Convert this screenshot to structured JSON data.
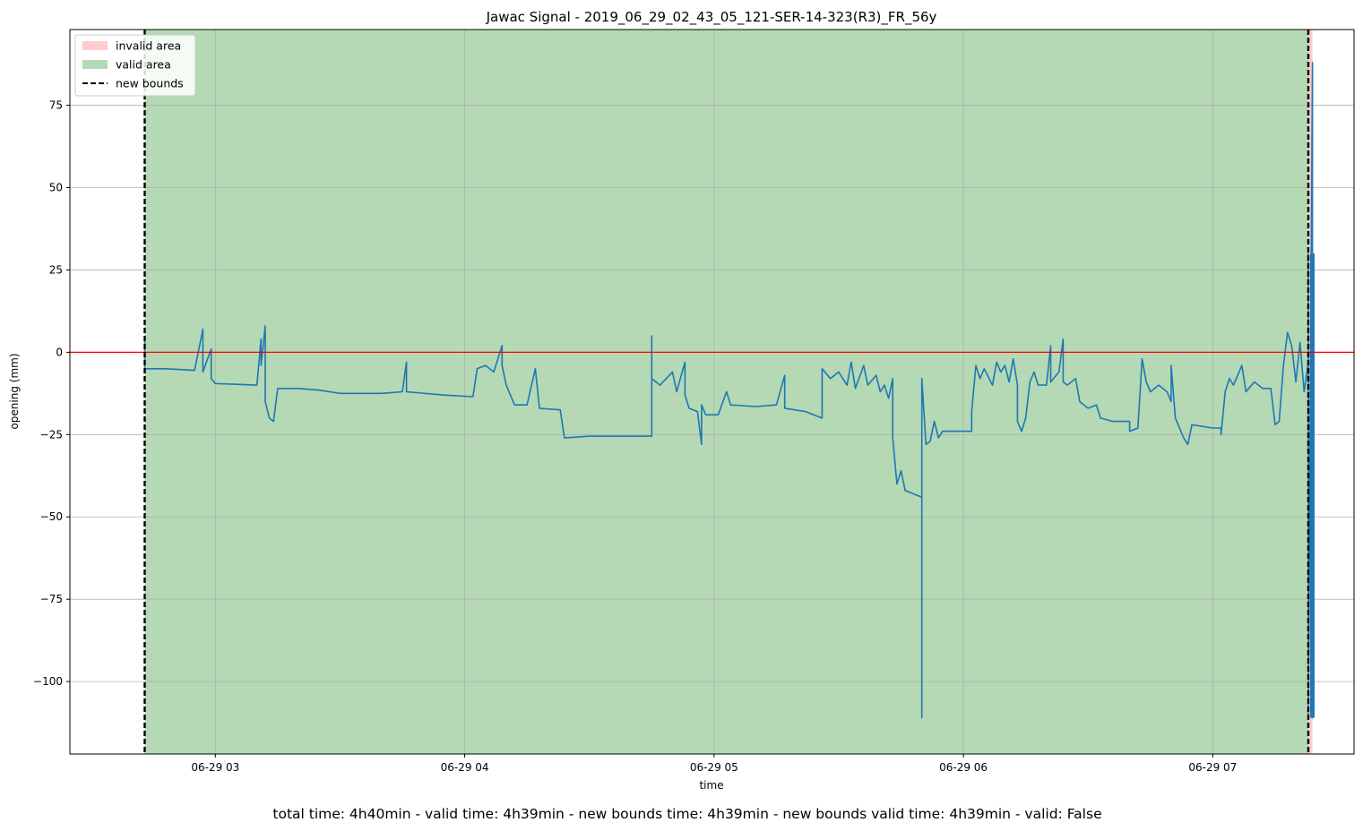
{
  "chart_data": {
    "type": "line",
    "title": "Jawac Signal - 2019_06_29_02_43_05_121-SER-14-323(R3)_FR_56y",
    "xlabel": "time",
    "ylabel": "opening (mm)",
    "caption": "total time: 4h40min - valid time: 4h39min - new bounds time: 4h39min - new bounds valid time: 4h39min - valid: False",
    "xlim": [
      "06-29 02:25",
      "06-29 07:34"
    ],
    "ylim": [
      -122,
      98
    ],
    "x_ticks": [
      {
        "t": "06-29 03:00",
        "label": "06-29 03"
      },
      {
        "t": "06-29 04:00",
        "label": "06-29 04"
      },
      {
        "t": "06-29 05:00",
        "label": "06-29 05"
      },
      {
        "t": "06-29 06:00",
        "label": "06-29 06"
      },
      {
        "t": "06-29 07:00",
        "label": "06-29 07"
      }
    ],
    "y_ticks": [
      75,
      50,
      25,
      0,
      -25,
      -50,
      -75,
      -100
    ],
    "grid": true,
    "reference_line": {
      "y": 0,
      "color": "#ff0000"
    },
    "regions": [
      {
        "name": "valid area",
        "start": "06-29 02:43",
        "end": "06-29 07:23",
        "color": "#b4d9b4"
      },
      {
        "name": "invalid area",
        "start": "06-29 07:23",
        "end": "06-29 07:24",
        "color": "#ffcccc"
      }
    ],
    "bounds": {
      "start": "06-29 02:43",
      "end": "06-29 07:23",
      "style": "dashed",
      "color": "#000000"
    },
    "legend": {
      "position": "upper-left",
      "entries": [
        {
          "label": "invalid area",
          "color": "#ffcccc",
          "kind": "patch"
        },
        {
          "label": "valid area",
          "color": "#b4d9b4",
          "kind": "patch"
        },
        {
          "label": "new bounds",
          "color": "#000000",
          "kind": "dashed-line"
        }
      ]
    },
    "series": [
      {
        "color": "#1f77b4",
        "points": [
          [
            "06-29 02:43",
            5
          ],
          [
            "06-29 02:43",
            -5
          ],
          [
            "06-29 02:48",
            -5
          ],
          [
            "06-29 02:55",
            -5.5
          ],
          [
            "06-29 02:57",
            7
          ],
          [
            "06-29 02:57",
            -6
          ],
          [
            "06-29 02:59",
            1
          ],
          [
            "06-29 02:59",
            -8
          ],
          [
            "06-29 03:00",
            -9.5
          ],
          [
            "06-29 03:10",
            -10
          ],
          [
            "06-29 03:11",
            4
          ],
          [
            "06-29 03:11",
            -4
          ],
          [
            "06-29 03:12",
            8
          ],
          [
            "06-29 03:12",
            -15
          ],
          [
            "06-29 03:13",
            -20
          ],
          [
            "06-29 03:14",
            -21
          ],
          [
            "06-29 03:15",
            -11
          ],
          [
            "06-29 03:20",
            -11
          ],
          [
            "06-29 03:25",
            -11.5
          ],
          [
            "06-29 03:30",
            -12.5
          ],
          [
            "06-29 03:40",
            -12.5
          ],
          [
            "06-29 03:45",
            -12
          ],
          [
            "06-29 03:46",
            -3
          ],
          [
            "06-29 03:46",
            -12
          ],
          [
            "06-29 03:55",
            -13
          ],
          [
            "06-29 04:02",
            -13.5
          ],
          [
            "06-29 04:03",
            -5
          ],
          [
            "06-29 04:05",
            -4
          ],
          [
            "06-29 04:07",
            -6
          ],
          [
            "06-29 04:09",
            2
          ],
          [
            "06-29 04:09",
            -4
          ],
          [
            "06-29 04:10",
            -10
          ],
          [
            "06-29 04:12",
            -16
          ],
          [
            "06-29 04:15",
            -16
          ],
          [
            "06-29 04:17",
            -5
          ],
          [
            "06-29 04:18",
            -17
          ],
          [
            "06-29 04:23",
            -17.5
          ],
          [
            "06-29 04:24",
            -26
          ],
          [
            "06-29 04:30",
            -25.5
          ],
          [
            "06-29 04:45",
            -25.5
          ],
          [
            "06-29 04:45",
            5
          ],
          [
            "06-29 04:45",
            -8
          ],
          [
            "06-29 04:47",
            -10
          ],
          [
            "06-29 04:50",
            -6
          ],
          [
            "06-29 04:51",
            -12
          ],
          [
            "06-29 04:53",
            -3
          ],
          [
            "06-29 04:53",
            -13
          ],
          [
            "06-29 04:54",
            -17
          ],
          [
            "06-29 04:56",
            -18
          ],
          [
            "06-29 04:57",
            -28
          ],
          [
            "06-29 04:57",
            -16
          ],
          [
            "06-29 04:58",
            -19
          ],
          [
            "06-29 05:01",
            -19
          ],
          [
            "06-29 05:03",
            -12
          ],
          [
            "06-29 05:04",
            -16
          ],
          [
            "06-29 05:10",
            -16.5
          ],
          [
            "06-29 05:15",
            -16
          ],
          [
            "06-29 05:17",
            -7
          ],
          [
            "06-29 05:17",
            -17
          ],
          [
            "06-29 05:22",
            -18
          ],
          [
            "06-29 05:24",
            -19
          ],
          [
            "06-29 05:26",
            -20
          ],
          [
            "06-29 05:26",
            -5
          ],
          [
            "06-29 05:28",
            -8
          ],
          [
            "06-29 05:30",
            -6
          ],
          [
            "06-29 05:32",
            -10
          ],
          [
            "06-29 05:33",
            -3
          ],
          [
            "06-29 05:34",
            -11
          ],
          [
            "06-29 05:36",
            -4
          ],
          [
            "06-29 05:37",
            -10
          ],
          [
            "06-29 05:39",
            -7
          ],
          [
            "06-29 05:40",
            -12
          ],
          [
            "06-29 05:41",
            -10
          ],
          [
            "06-29 05:42",
            -14
          ],
          [
            "06-29 05:43",
            -8
          ],
          [
            "06-29 05:43",
            -26
          ],
          [
            "06-29 05:44",
            -40
          ],
          [
            "06-29 05:45",
            -36
          ],
          [
            "06-29 05:46",
            -42
          ],
          [
            "06-29 05:48",
            -43
          ],
          [
            "06-29 05:50",
            -44
          ],
          [
            "06-29 05:50",
            -50
          ],
          [
            "06-29 05:50",
            -111
          ],
          [
            "06-29 05:50",
            -8
          ],
          [
            "06-29 05:51",
            -28
          ],
          [
            "06-29 05:52",
            -27
          ],
          [
            "06-29 05:53",
            -21
          ],
          [
            "06-29 05:54",
            -26
          ],
          [
            "06-29 05:55",
            -24
          ],
          [
            "06-29 06:02",
            -24
          ],
          [
            "06-29 06:02",
            -18
          ],
          [
            "06-29 06:03",
            -4
          ],
          [
            "06-29 06:04",
            -8
          ],
          [
            "06-29 06:05",
            -5
          ],
          [
            "06-29 06:07",
            -10
          ],
          [
            "06-29 06:08",
            -3
          ],
          [
            "06-29 06:09",
            -6
          ],
          [
            "06-29 06:10",
            -4
          ],
          [
            "06-29 06:11",
            -9
          ],
          [
            "06-29 06:12",
            -2
          ],
          [
            "06-29 06:13",
            -10
          ],
          [
            "06-29 06:13",
            -21
          ],
          [
            "06-29 06:14",
            -24
          ],
          [
            "06-29 06:15",
            -20
          ],
          [
            "06-29 06:16",
            -9
          ],
          [
            "06-29 06:17",
            -6
          ],
          [
            "06-29 06:18",
            -10
          ],
          [
            "06-29 06:20",
            -10
          ],
          [
            "06-29 06:21",
            2
          ],
          [
            "06-29 06:21",
            -9
          ],
          [
            "06-29 06:23",
            -6
          ],
          [
            "06-29 06:24",
            4
          ],
          [
            "06-29 06:24",
            -9
          ],
          [
            "06-29 06:25",
            -10
          ],
          [
            "06-29 06:27",
            -8
          ],
          [
            "06-29 06:28",
            -15
          ],
          [
            "06-29 06:30",
            -17
          ],
          [
            "06-29 06:32",
            -16
          ],
          [
            "06-29 06:33",
            -20
          ],
          [
            "06-29 06:36",
            -21
          ],
          [
            "06-29 06:40",
            -21
          ],
          [
            "06-29 06:40",
            -24
          ],
          [
            "06-29 06:42",
            -23
          ],
          [
            "06-29 06:43",
            -2
          ],
          [
            "06-29 06:44",
            -9
          ],
          [
            "06-29 06:45",
            -12
          ],
          [
            "06-29 06:47",
            -10
          ],
          [
            "06-29 06:49",
            -12
          ],
          [
            "06-29 06:50",
            -15
          ],
          [
            "06-29 06:50",
            -4
          ],
          [
            "06-29 06:51",
            -20
          ],
          [
            "06-29 06:53",
            -26
          ],
          [
            "06-29 06:54",
            -28
          ],
          [
            "06-29 06:55",
            -22
          ],
          [
            "06-29 07:00",
            -23
          ],
          [
            "06-29 07:02",
            -23
          ],
          [
            "06-29 07:02",
            -25
          ],
          [
            "06-29 07:03",
            -12
          ],
          [
            "06-29 07:04",
            -8
          ],
          [
            "06-29 07:05",
            -10
          ],
          [
            "06-29 07:07",
            -4
          ],
          [
            "06-29 07:08",
            -12
          ],
          [
            "06-29 07:10",
            -9
          ],
          [
            "06-29 07:12",
            -11
          ],
          [
            "06-29 07:14",
            -11
          ],
          [
            "06-29 07:15",
            -22
          ],
          [
            "06-29 07:16",
            -21
          ],
          [
            "06-29 07:17",
            -4
          ],
          [
            "06-29 07:18",
            6
          ],
          [
            "06-29 07:19",
            2
          ],
          [
            "06-29 07:20",
            -9
          ],
          [
            "06-29 07:21",
            3
          ],
          [
            "06-29 07:22",
            -12
          ],
          [
            "06-29 07:23",
            -3
          ],
          [
            "06-29 07:23",
            30
          ],
          [
            "06-29 07:23",
            -111
          ],
          [
            "06-29 07:24",
            88
          ],
          [
            "06-29 07:24",
            -111
          ],
          [
            "06-29 07:24",
            70
          ],
          [
            "06-29 07:24",
            -111
          ]
        ]
      }
    ]
  }
}
